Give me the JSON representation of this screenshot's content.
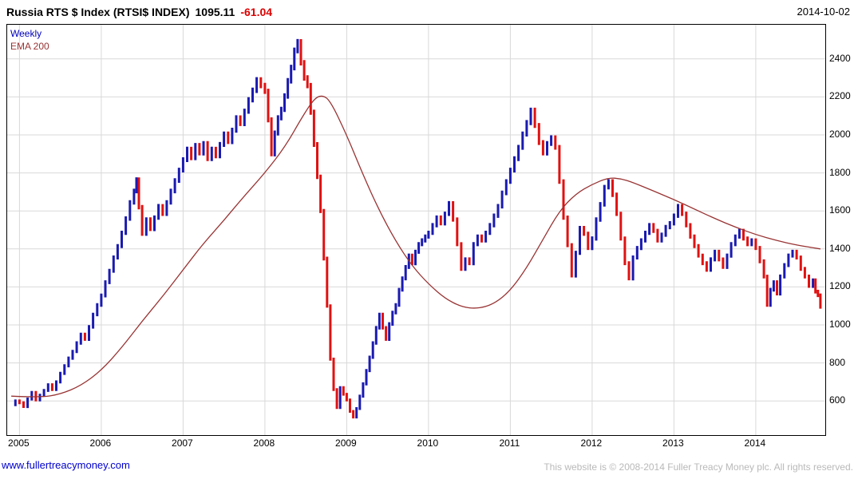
{
  "header": {
    "title": "Russia RTS $ Index (RTSI$ INDEX)",
    "last": "1095.11",
    "change": "-61.04",
    "date": "2014-10-02"
  },
  "legend": {
    "timeframe": "Weekly",
    "ema": "EMA 200"
  },
  "footer": {
    "site": "www.fullertreacymoney.com",
    "copyright": "This website is © 2008-2014 Fuller Treacy Money plc. All rights reserved."
  },
  "chart_data": {
    "type": "ohlc",
    "title": "Russia RTS $ Index (RTSI$ INDEX)",
    "xlabel": "",
    "ylabel": "",
    "legend_entries": [
      "Weekly",
      "EMA 200"
    ],
    "legend_position": "top-left",
    "grid": true,
    "xlim": [
      2004.85,
      2014.85
    ],
    "ylim": [
      420,
      2580
    ],
    "xticks": [
      2005,
      2006,
      2007,
      2008,
      2009,
      2010,
      2011,
      2012,
      2013,
      2014
    ],
    "yticks": [
      600,
      800,
      1000,
      1200,
      1400,
      1600,
      1800,
      2000,
      2200,
      2400
    ],
    "up_color": "#1a1ab0",
    "down_color": "#e01111",
    "ema_color": "#993333",
    "grid_color": "#d9d9d9",
    "series": {
      "name": "RTSI$ weekly close (approx)",
      "points": [
        [
          2004.9,
          580
        ],
        [
          2004.95,
          600
        ],
        [
          2005.0,
          590
        ],
        [
          2005.05,
          570
        ],
        [
          2005.1,
          610
        ],
        [
          2005.15,
          645
        ],
        [
          2005.2,
          605
        ],
        [
          2005.25,
          630
        ],
        [
          2005.3,
          655
        ],
        [
          2005.35,
          685
        ],
        [
          2005.4,
          660
        ],
        [
          2005.45,
          700
        ],
        [
          2005.5,
          745
        ],
        [
          2005.55,
          785
        ],
        [
          2005.6,
          825
        ],
        [
          2005.65,
          860
        ],
        [
          2005.7,
          905
        ],
        [
          2005.75,
          950
        ],
        [
          2005.8,
          925
        ],
        [
          2005.85,
          990
        ],
        [
          2005.9,
          1055
        ],
        [
          2005.95,
          1105
        ],
        [
          2006.0,
          1155
        ],
        [
          2006.05,
          1225
        ],
        [
          2006.1,
          1285
        ],
        [
          2006.15,
          1355
        ],
        [
          2006.2,
          1415
        ],
        [
          2006.25,
          1485
        ],
        [
          2006.3,
          1560
        ],
        [
          2006.35,
          1645
        ],
        [
          2006.4,
          1705
        ],
        [
          2006.43,
          1765
        ],
        [
          2006.46,
          1620
        ],
        [
          2006.5,
          1480
        ],
        [
          2006.55,
          1555
        ],
        [
          2006.6,
          1505
        ],
        [
          2006.65,
          1565
        ],
        [
          2006.7,
          1625
        ],
        [
          2006.75,
          1585
        ],
        [
          2006.8,
          1645
        ],
        [
          2006.85,
          1705
        ],
        [
          2006.9,
          1760
        ],
        [
          2006.95,
          1815
        ],
        [
          2007.0,
          1870
        ],
        [
          2007.05,
          1925
        ],
        [
          2007.1,
          1880
        ],
        [
          2007.15,
          1945
        ],
        [
          2007.2,
          1905
        ],
        [
          2007.25,
          1955
        ],
        [
          2007.3,
          1875
        ],
        [
          2007.35,
          1925
        ],
        [
          2007.4,
          1890
        ],
        [
          2007.45,
          1950
        ],
        [
          2007.5,
          2005
        ],
        [
          2007.55,
          1965
        ],
        [
          2007.6,
          2025
        ],
        [
          2007.65,
          2090
        ],
        [
          2007.7,
          2060
        ],
        [
          2007.75,
          2125
        ],
        [
          2007.8,
          2185
        ],
        [
          2007.85,
          2235
        ],
        [
          2007.9,
          2290
        ],
        [
          2007.95,
          2260
        ],
        [
          2008.0,
          2230
        ],
        [
          2008.04,
          2080
        ],
        [
          2008.08,
          1900
        ],
        [
          2008.12,
          2010
        ],
        [
          2008.16,
          2090
        ],
        [
          2008.2,
          2135
        ],
        [
          2008.24,
          2205
        ],
        [
          2008.28,
          2285
        ],
        [
          2008.32,
          2355
        ],
        [
          2008.36,
          2445
        ],
        [
          2008.4,
          2490
        ],
        [
          2008.44,
          2380
        ],
        [
          2008.48,
          2300
        ],
        [
          2008.52,
          2260
        ],
        [
          2008.56,
          2120
        ],
        [
          2008.6,
          1950
        ],
        [
          2008.64,
          1780
        ],
        [
          2008.68,
          1600
        ],
        [
          2008.72,
          1350
        ],
        [
          2008.76,
          1100
        ],
        [
          2008.8,
          820
        ],
        [
          2008.84,
          660
        ],
        [
          2008.88,
          565
        ],
        [
          2008.92,
          670
        ],
        [
          2008.96,
          635
        ],
        [
          2009.0,
          605
        ],
        [
          2009.04,
          545
        ],
        [
          2009.08,
          515
        ],
        [
          2009.12,
          560
        ],
        [
          2009.16,
          625
        ],
        [
          2009.2,
          690
        ],
        [
          2009.24,
          760
        ],
        [
          2009.28,
          830
        ],
        [
          2009.32,
          905
        ],
        [
          2009.36,
          985
        ],
        [
          2009.4,
          1055
        ],
        [
          2009.44,
          985
        ],
        [
          2009.48,
          925
        ],
        [
          2009.52,
          1005
        ],
        [
          2009.56,
          1065
        ],
        [
          2009.6,
          1105
        ],
        [
          2009.64,
          1185
        ],
        [
          2009.68,
          1245
        ],
        [
          2009.72,
          1305
        ],
        [
          2009.76,
          1365
        ],
        [
          2009.8,
          1325
        ],
        [
          2009.84,
          1385
        ],
        [
          2009.88,
          1425
        ],
        [
          2009.92,
          1445
        ],
        [
          2009.96,
          1465
        ],
        [
          2010.0,
          1485
        ],
        [
          2010.05,
          1525
        ],
        [
          2010.1,
          1565
        ],
        [
          2010.15,
          1535
        ],
        [
          2010.2,
          1585
        ],
        [
          2010.25,
          1640
        ],
        [
          2010.3,
          1555
        ],
        [
          2010.35,
          1425
        ],
        [
          2010.4,
          1295
        ],
        [
          2010.45,
          1345
        ],
        [
          2010.5,
          1325
        ],
        [
          2010.55,
          1425
        ],
        [
          2010.6,
          1465
        ],
        [
          2010.65,
          1445
        ],
        [
          2010.7,
          1485
        ],
        [
          2010.75,
          1525
        ],
        [
          2010.8,
          1575
        ],
        [
          2010.85,
          1625
        ],
        [
          2010.9,
          1695
        ],
        [
          2010.95,
          1755
        ],
        [
          2011.0,
          1815
        ],
        [
          2011.05,
          1875
        ],
        [
          2011.1,
          1935
        ],
        [
          2011.15,
          2005
        ],
        [
          2011.2,
          2065
        ],
        [
          2011.25,
          2130
        ],
        [
          2011.3,
          2050
        ],
        [
          2011.35,
          1960
        ],
        [
          2011.4,
          1905
        ],
        [
          2011.45,
          1955
        ],
        [
          2011.5,
          1985
        ],
        [
          2011.55,
          1935
        ],
        [
          2011.6,
          1755
        ],
        [
          2011.65,
          1565
        ],
        [
          2011.7,
          1420
        ],
        [
          2011.75,
          1260
        ],
        [
          2011.8,
          1380
        ],
        [
          2011.85,
          1510
        ],
        [
          2011.9,
          1480
        ],
        [
          2011.95,
          1405
        ],
        [
          2012.0,
          1455
        ],
        [
          2012.05,
          1555
        ],
        [
          2012.1,
          1635
        ],
        [
          2012.15,
          1725
        ],
        [
          2012.2,
          1755
        ],
        [
          2012.25,
          1685
        ],
        [
          2012.3,
          1585
        ],
        [
          2012.35,
          1455
        ],
        [
          2012.4,
          1325
        ],
        [
          2012.45,
          1245
        ],
        [
          2012.5,
          1355
        ],
        [
          2012.55,
          1405
        ],
        [
          2012.6,
          1445
        ],
        [
          2012.65,
          1485
        ],
        [
          2012.7,
          1525
        ],
        [
          2012.75,
          1495
        ],
        [
          2012.8,
          1445
        ],
        [
          2012.85,
          1475
        ],
        [
          2012.9,
          1515
        ],
        [
          2012.95,
          1535
        ],
        [
          2013.0,
          1575
        ],
        [
          2013.05,
          1625
        ],
        [
          2013.1,
          1585
        ],
        [
          2013.15,
          1525
        ],
        [
          2013.2,
          1465
        ],
        [
          2013.25,
          1415
        ],
        [
          2013.3,
          1365
        ],
        [
          2013.35,
          1325
        ],
        [
          2013.4,
          1290
        ],
        [
          2013.45,
          1345
        ],
        [
          2013.5,
          1385
        ],
        [
          2013.55,
          1345
        ],
        [
          2013.6,
          1305
        ],
        [
          2013.65,
          1365
        ],
        [
          2013.7,
          1425
        ],
        [
          2013.75,
          1465
        ],
        [
          2013.8,
          1495
        ],
        [
          2013.85,
          1455
        ],
        [
          2013.9,
          1425
        ],
        [
          2013.95,
          1445
        ],
        [
          2014.0,
          1405
        ],
        [
          2014.05,
          1335
        ],
        [
          2014.1,
          1255
        ],
        [
          2014.14,
          1105
        ],
        [
          2014.18,
          1185
        ],
        [
          2014.22,
          1225
        ],
        [
          2014.26,
          1165
        ],
        [
          2014.3,
          1255
        ],
        [
          2014.35,
          1315
        ],
        [
          2014.4,
          1365
        ],
        [
          2014.45,
          1385
        ],
        [
          2014.5,
          1355
        ],
        [
          2014.55,
          1295
        ],
        [
          2014.6,
          1255
        ],
        [
          2014.65,
          1205
        ],
        [
          2014.7,
          1235
        ],
        [
          2014.73,
          1175
        ],
        [
          2014.76,
          1156
        ],
        [
          2014.79,
          1095
        ]
      ]
    },
    "ema": {
      "name": "EMA 200 (approx)",
      "points": [
        [
          2004.9,
          625
        ],
        [
          2005.25,
          618
        ],
        [
          2005.5,
          635
        ],
        [
          2005.75,
          680
        ],
        [
          2006.0,
          760
        ],
        [
          2006.25,
          880
        ],
        [
          2006.5,
          1020
        ],
        [
          2006.75,
          1150
        ],
        [
          2007.0,
          1290
        ],
        [
          2007.25,
          1430
        ],
        [
          2007.5,
          1550
        ],
        [
          2007.75,
          1680
        ],
        [
          2008.0,
          1800
        ],
        [
          2008.25,
          1940
        ],
        [
          2008.45,
          2090
        ],
        [
          2008.6,
          2190
        ],
        [
          2008.7,
          2210
        ],
        [
          2008.8,
          2180
        ],
        [
          2009.0,
          2000
        ],
        [
          2009.2,
          1790
        ],
        [
          2009.4,
          1600
        ],
        [
          2009.6,
          1440
        ],
        [
          2009.8,
          1310
        ],
        [
          2010.0,
          1215
        ],
        [
          2010.2,
          1140
        ],
        [
          2010.4,
          1095
        ],
        [
          2010.6,
          1085
        ],
        [
          2010.8,
          1110
        ],
        [
          2011.0,
          1180
        ],
        [
          2011.2,
          1300
        ],
        [
          2011.4,
          1450
        ],
        [
          2011.6,
          1600
        ],
        [
          2011.8,
          1690
        ],
        [
          2012.0,
          1740
        ],
        [
          2012.2,
          1775
        ],
        [
          2012.35,
          1770
        ],
        [
          2012.5,
          1750
        ],
        [
          2012.75,
          1705
        ],
        [
          2013.0,
          1660
        ],
        [
          2013.25,
          1610
        ],
        [
          2013.5,
          1560
        ],
        [
          2013.75,
          1515
        ],
        [
          2014.0,
          1475
        ],
        [
          2014.25,
          1445
        ],
        [
          2014.5,
          1420
        ],
        [
          2014.79,
          1400
        ]
      ]
    }
  }
}
